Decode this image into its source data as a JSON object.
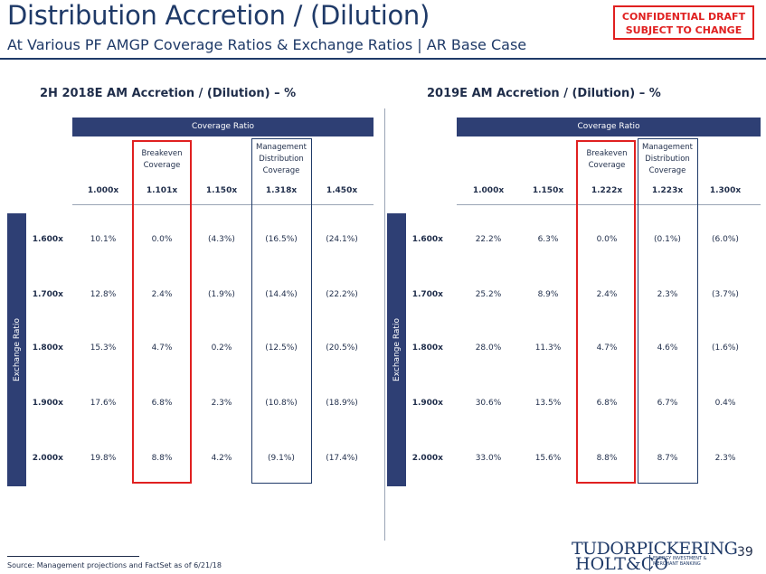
{
  "title": "Distribution Accretion / (Dilution)",
  "subtitle": "At Various PF AMGP Coverage Ratios & Exchange Ratios | AR Base Case",
  "confidential": [
    "CONFIDENTIAL DRAFT",
    "SUBJECT TO CHANGE"
  ],
  "coverage_label": "Coverage Ratio",
  "exchange_label": "Exchange Ratio",
  "row_labels": [
    "1.600x",
    "1.700x",
    "1.800x",
    "1.900x",
    "2.000x"
  ],
  "left": {
    "title": "2H 2018E AM Accretion / (Dilution) – %",
    "col_headers": [
      [],
      [
        "Breakeven",
        "Coverage"
      ],
      [],
      [
        "Management",
        "Distribution",
        "Coverage"
      ],
      []
    ],
    "col_values": [
      "1.000x",
      "1.101x",
      "1.150x",
      "1.318x",
      "1.450x"
    ],
    "cells": [
      [
        "10.1%",
        "0.0%",
        "(4.3%)",
        "(16.5%)",
        "(24.1%)"
      ],
      [
        "12.8%",
        "2.4%",
        "(1.9%)",
        "(14.4%)",
        "(22.2%)"
      ],
      [
        "15.3%",
        "4.7%",
        "0.2%",
        "(12.5%)",
        "(20.5%)"
      ],
      [
        "17.6%",
        "6.8%",
        "2.3%",
        "(10.8%)",
        "(18.9%)"
      ],
      [
        "19.8%",
        "8.8%",
        "4.2%",
        "(9.1%)",
        "(17.4%)"
      ]
    ]
  },
  "right": {
    "title": "2019E AM Accretion / (Dilution) – %",
    "col_headers": [
      [],
      [],
      [
        "Breakeven",
        "Coverage"
      ],
      [
        "Management",
        "Distribution",
        "Coverage"
      ],
      []
    ],
    "col_values": [
      "1.000x",
      "1.150x",
      "1.222x",
      "1.223x",
      "1.300x"
    ],
    "cells": [
      [
        "22.2%",
        "6.3%",
        "0.0%",
        "(0.1%)",
        "(6.0%)"
      ],
      [
        "25.2%",
        "8.9%",
        "2.4%",
        "2.3%",
        "(3.7%)"
      ],
      [
        "28.0%",
        "11.3%",
        "4.7%",
        "4.6%",
        "(1.6%)"
      ],
      [
        "30.6%",
        "13.5%",
        "6.8%",
        "6.7%",
        "0.4%"
      ],
      [
        "33.0%",
        "15.6%",
        "8.8%",
        "8.7%",
        "2.3%"
      ]
    ]
  },
  "source": "Source: Management projections and FactSet as of 6/21/18",
  "logo": {
    "line1": "TUDORPICKERING",
    "line2": "HOLT&CO",
    "sub": [
      "ENERGY INVESTMENT &",
      "MERCHANT BANKING"
    ]
  },
  "page_number": "39"
}
